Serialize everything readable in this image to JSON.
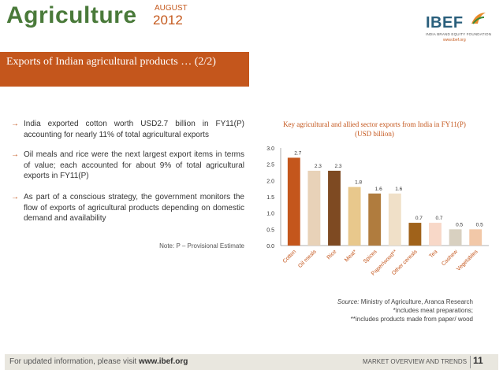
{
  "header": {
    "title": "Agriculture",
    "month": "AUGUST",
    "year": "2012",
    "logo": {
      "name": "IBEF",
      "subtitle": "INDIA BRAND EQUITY FOUNDATION",
      "url": "www.ibef.org"
    }
  },
  "banner": {
    "title": "Exports of Indian agricultural products … (2/2)"
  },
  "bullets": [
    "India exported cotton worth USD2.7 billion in FY11(P) accounting for nearly 11% of total agricultural exports",
    "Oil meals and rice were the next largest export items in terms of value; each accounted for about 9% of total agricultural exports in FY11(P)",
    "As part of a conscious strategy, the government monitors the flow of exports of agricultural products depending on domestic demand and availability"
  ],
  "note": "Note: P – Provisional Estimate",
  "chart_data": {
    "type": "bar",
    "title": "Key agricultural and allied sector exports from India in FY11(P)",
    "subtitle": "(USD billion)",
    "categories": [
      "Cotton",
      "Oil meals",
      "Rice",
      "Meat*",
      "Spices",
      "Paper/wood**",
      "Other cereals",
      "Tea",
      "Cashew",
      "Vegetables"
    ],
    "values": [
      2.7,
      2.3,
      2.3,
      1.8,
      1.6,
      1.6,
      0.7,
      0.7,
      0.5,
      0.5
    ],
    "value_labels": [
      "2.7",
      "2.3",
      "2.3",
      "1.8",
      "1.6",
      "1.6",
      "0.7",
      "0.7",
      "0.5",
      "0.5"
    ],
    "colors": [
      "#c4561c",
      "#e8d2b8",
      "#7e4a22",
      "#e8c88c",
      "#b07c3e",
      "#f0e0c8",
      "#a0621a",
      "#f8d8c8",
      "#d8d0c0",
      "#f2c8a8"
    ],
    "ylim": [
      0,
      3.0
    ],
    "yticks": [
      "0.0",
      "0.5",
      "1.0",
      "1.5",
      "2.0",
      "2.5",
      "3.0"
    ],
    "grid": false
  },
  "source": {
    "label": "Source:",
    "text": "Ministry of Agriculture, Aranca Research",
    "footnote1": "*includes meat preparations;",
    "footnote2": "**includes products made from paper/ wood"
  },
  "footer": {
    "left_prefix": "For updated information, please visit",
    "left_link": "www.ibef.org",
    "right": "MARKET OVERVIEW AND TRENDS",
    "page": "11"
  }
}
